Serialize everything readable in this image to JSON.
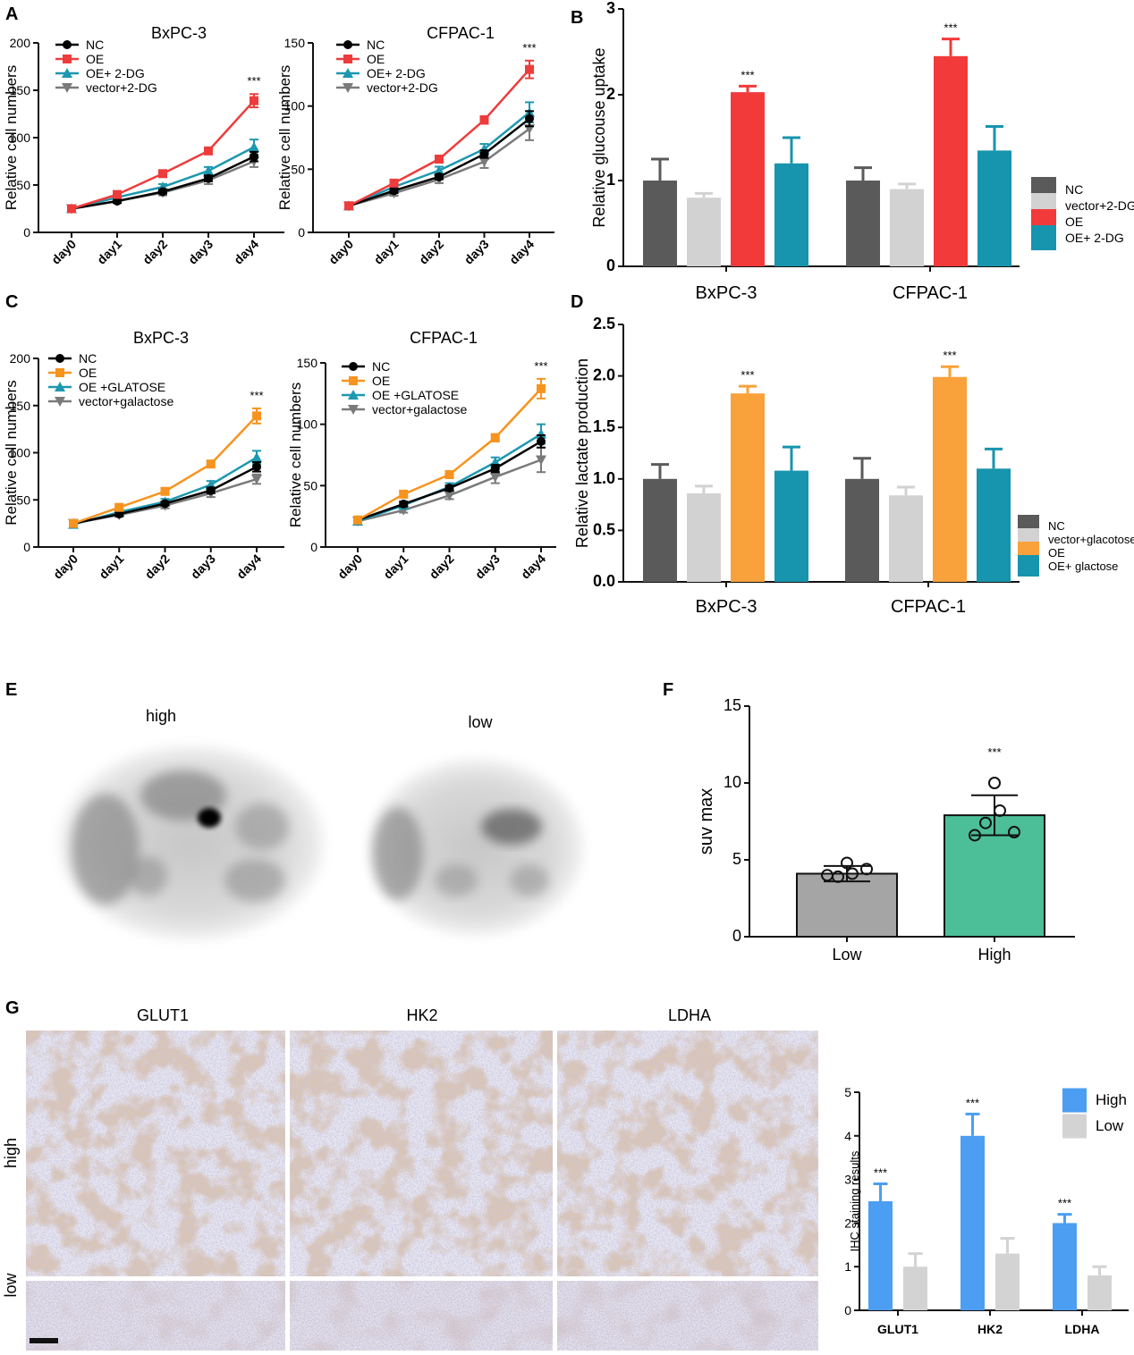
{
  "panel_letters": [
    "A",
    "B",
    "C",
    "D",
    "E",
    "F",
    "G"
  ],
  "colors": {
    "nc": "#000000",
    "oe_red": "#ee3c3c",
    "oe_orange": "#f7931e",
    "teal": "#1d98b0",
    "gray_line": "#7a7a7a",
    "bar_dark": "#5a5a5a",
    "bar_light": "#d2d2d2",
    "bar_red": "#f23a3a",
    "bar_orange": "#f9a13a",
    "bar_teal": "#1794ae",
    "suv_low": "#a5a5a5",
    "suv_high": "#4cbf98",
    "ihc_high": "#4b9ef2",
    "ihc_low": "#d3d3d3"
  },
  "panel_e": {
    "labels": [
      "high",
      "low"
    ]
  },
  "panel_g": {
    "column_titles": [
      "GLUT1",
      "HK2",
      "LDHA"
    ],
    "row_labels": [
      "high",
      "low"
    ]
  },
  "chart_data": [
    {
      "id": "A1",
      "type": "line",
      "title": "BxPC-3",
      "xlabel": "",
      "ylabel": "Relative cell numbers",
      "ylim": [
        0,
        200
      ],
      "yticks": [
        "0",
        "50",
        "100",
        "150",
        "200"
      ],
      "categories": [
        "day0",
        "day1",
        "day2",
        "day3",
        "day4"
      ],
      "significance": "***",
      "series": [
        {
          "name": "NC",
          "color": "#000000",
          "marker": "circle",
          "values": [
            25,
            33,
            43,
            57,
            80
          ],
          "err": [
            2,
            2,
            2,
            3,
            5
          ]
        },
        {
          "name": "OE",
          "color": "#ee3c3c",
          "marker": "square",
          "values": [
            25,
            40,
            62,
            86,
            139
          ],
          "err": [
            2,
            2,
            3,
            3,
            7
          ]
        },
        {
          "name": "OE+ 2-DG",
          "color": "#1d98b0",
          "marker": "triangle-up",
          "values": [
            25,
            37,
            48,
            65,
            90
          ],
          "err": [
            2,
            2,
            3,
            4,
            8
          ]
        },
        {
          "name": "vector+2-DG",
          "color": "#7a7a7a",
          "marker": "triangle-down",
          "values": [
            25,
            33,
            42,
            55,
            75
          ],
          "err": [
            2,
            2,
            3,
            4,
            6
          ]
        }
      ]
    },
    {
      "id": "A2",
      "type": "line",
      "title": "CFPAC-1",
      "xlabel": "",
      "ylabel": "Relative cell numbers",
      "ylim": [
        0,
        150
      ],
      "yticks": [
        "0",
        "50",
        "100",
        "150"
      ],
      "categories": [
        "day0",
        "day1",
        "day2",
        "day3",
        "day4"
      ],
      "significance": "***",
      "series": [
        {
          "name": "NC",
          "color": "#000000",
          "marker": "circle",
          "values": [
            21,
            33,
            44,
            62,
            90
          ],
          "err": [
            2,
            2,
            2,
            3,
            6
          ]
        },
        {
          "name": "OE",
          "color": "#ee3c3c",
          "marker": "square",
          "values": [
            21,
            39,
            58,
            89,
            129
          ],
          "err": [
            2,
            2,
            2,
            3,
            7
          ]
        },
        {
          "name": "OE+ 2-DG",
          "color": "#1d98b0",
          "marker": "triangle-up",
          "values": [
            21,
            36,
            49,
            66,
            95
          ],
          "err": [
            2,
            2,
            3,
            4,
            8
          ]
        },
        {
          "name": "vector+2-DG",
          "color": "#7a7a7a",
          "marker": "triangle-down",
          "values": [
            21,
            31,
            42,
            56,
            82
          ],
          "err": [
            2,
            2,
            3,
            5,
            9
          ]
        }
      ]
    },
    {
      "id": "B",
      "type": "bar",
      "title": "",
      "xlabel": "",
      "ylabel": "Relative glucouse uptake",
      "ylim": [
        0,
        3
      ],
      "yticks": [
        "0",
        "1",
        "2",
        "3"
      ],
      "categories": [
        "BxPC-3",
        "CFPAC-1"
      ],
      "significance": [
        "***",
        "***"
      ],
      "series": [
        {
          "name": "NC",
          "color": "#5a5a5a",
          "values": [
            1.0,
            1.0
          ],
          "err": [
            0.25,
            0.15
          ]
        },
        {
          "name": "vector+2-DG",
          "color": "#d2d2d2",
          "values": [
            0.8,
            0.9
          ],
          "err": [
            0.05,
            0.06
          ]
        },
        {
          "name": "OE",
          "color": "#f23a3a",
          "values": [
            2.03,
            2.45
          ],
          "err": [
            0.07,
            0.2
          ]
        },
        {
          "name": "OE+ 2-DG",
          "color": "#1794ae",
          "values": [
            1.2,
            1.35
          ],
          "err": [
            0.3,
            0.28
          ]
        }
      ]
    },
    {
      "id": "C1",
      "type": "line",
      "title": "BxPC-3",
      "xlabel": "",
      "ylabel": "Relative cell numbers",
      "ylim": [
        0,
        200
      ],
      "yticks": [
        "0",
        "50",
        "100",
        "150",
        "200"
      ],
      "categories": [
        "day0",
        "day1",
        "day2",
        "day3",
        "day4"
      ],
      "significance": "***",
      "series": [
        {
          "name": "NC",
          "color": "#000000",
          "marker": "circle",
          "values": [
            25,
            35,
            46,
            60,
            85
          ],
          "err": [
            2,
            2,
            2,
            3,
            5
          ]
        },
        {
          "name": "OE",
          "color": "#f7931e",
          "marker": "square",
          "values": [
            25,
            42,
            59,
            88,
            139
          ],
          "err": [
            2,
            2,
            2,
            3,
            8
          ]
        },
        {
          "name": "OE +GLATOSE",
          "color": "#1d98b0",
          "marker": "triangle-up",
          "values": [
            24,
            37,
            48,
            66,
            95
          ],
          "err": [
            2,
            2,
            3,
            4,
            7
          ]
        },
        {
          "name": "vector+galactose",
          "color": "#7a7a7a",
          "marker": "triangle-down",
          "values": [
            25,
            34,
            44,
            57,
            72
          ],
          "err": [
            2,
            2,
            3,
            4,
            5
          ]
        }
      ]
    },
    {
      "id": "C2",
      "type": "line",
      "title": "CFPAC-1",
      "xlabel": "",
      "ylabel": "Relative cell numbers",
      "ylim": [
        0,
        150
      ],
      "yticks": [
        "0",
        "50",
        "100",
        "150"
      ],
      "categories": [
        "day0",
        "day1",
        "day2",
        "day3",
        "day4"
      ],
      "significance": "***",
      "series": [
        {
          "name": "NC",
          "color": "#000000",
          "marker": "circle",
          "values": [
            22,
            35,
            48,
            64,
            86
          ],
          "err": [
            2,
            2,
            2,
            3,
            5
          ]
        },
        {
          "name": "OE",
          "color": "#f7931e",
          "marker": "square",
          "values": [
            22,
            43,
            59,
            89,
            129
          ],
          "err": [
            2,
            2,
            2,
            3,
            8
          ]
        },
        {
          "name": "OE +GLATOSE",
          "color": "#1d98b0",
          "marker": "triangle-up",
          "values": [
            21,
            34,
            49,
            69,
            92
          ],
          "err": [
            2,
            2,
            3,
            4,
            8
          ]
        },
        {
          "name": "vector+galactose",
          "color": "#7a7a7a",
          "marker": "triangle-down",
          "values": [
            21,
            30,
            42,
            57,
            71
          ],
          "err": [
            2,
            2,
            3,
            5,
            10
          ]
        }
      ]
    },
    {
      "id": "D",
      "type": "bar",
      "title": "",
      "xlabel": "",
      "ylabel": "Relative lactate production",
      "ylim": [
        0,
        2.5
      ],
      "yticks": [
        "0.0",
        "0.5",
        "1.0",
        "1.5",
        "2.0",
        "2.5"
      ],
      "categories": [
        "BxPC-3",
        "CFPAC-1"
      ],
      "significance": [
        "***",
        "***"
      ],
      "series": [
        {
          "name": "NC",
          "color": "#5a5a5a",
          "values": [
            1.0,
            1.0
          ],
          "err": [
            0.14,
            0.2
          ]
        },
        {
          "name": "vector+glacotose",
          "color": "#d2d2d2",
          "values": [
            0.86,
            0.84
          ],
          "err": [
            0.07,
            0.08
          ]
        },
        {
          "name": "OE",
          "color": "#f9a13a",
          "values": [
            1.83,
            1.99
          ],
          "err": [
            0.07,
            0.1
          ]
        },
        {
          "name": "OE+ glactose",
          "color": "#1794ae",
          "values": [
            1.08,
            1.1
          ],
          "err": [
            0.23,
            0.19
          ]
        }
      ]
    },
    {
      "id": "F",
      "type": "bar",
      "title": "",
      "xlabel": "",
      "ylabel": "suv max",
      "ylim": [
        0,
        15
      ],
      "yticks": [
        "0",
        "5",
        "10",
        "15"
      ],
      "categories": [
        "Low",
        "High"
      ],
      "significance": [
        "",
        "***"
      ],
      "series": [
        {
          "name": "",
          "colors": [
            "#a5a5a5",
            "#4cbf98"
          ],
          "values": [
            4.1,
            7.9
          ],
          "err": [
            0.5,
            1.3
          ]
        }
      ],
      "points": [
        [
          4.0,
          3.9,
          4.1,
          4.8,
          4.4
        ],
        [
          6.6,
          7.4,
          8.2,
          10.0,
          6.8
        ]
      ]
    },
    {
      "id": "G",
      "type": "bar",
      "title": "",
      "xlabel": "",
      "ylabel": "IHC staining results",
      "ylim": [
        0,
        5
      ],
      "yticks": [
        "0",
        "1",
        "2",
        "3",
        "4",
        "5"
      ],
      "categories": [
        "GLUT1",
        "HK2",
        "LDHA"
      ],
      "significance": [
        "***",
        "***",
        "***"
      ],
      "series": [
        {
          "name": "High",
          "color": "#4b9ef2",
          "values": [
            2.5,
            4.0,
            2.0
          ],
          "err": [
            0.4,
            0.5,
            0.2
          ]
        },
        {
          "name": "Low",
          "color": "#d3d3d3",
          "values": [
            1.0,
            1.3,
            0.8
          ],
          "err": [
            0.3,
            0.35,
            0.2
          ]
        }
      ]
    }
  ]
}
